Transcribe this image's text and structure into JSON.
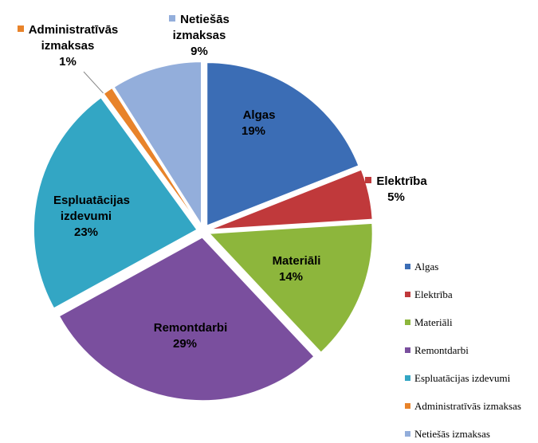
{
  "chart_data": {
    "type": "pie",
    "categories": [
      "Algas",
      "Elektrība",
      "Materiāli",
      "Remontdarbi",
      "Espluatācijas izdevumi",
      "Administratīvās izmaksas",
      "Netiešās izmaksas"
    ],
    "values": [
      19,
      5,
      14,
      29,
      23,
      1,
      9
    ],
    "value_labels": [
      "19%",
      "5%",
      "14%",
      "29%",
      "23%",
      "1%",
      "9%"
    ],
    "colors": [
      "#3b6db5",
      "#c0393b",
      "#8db63c",
      "#7a4f9e",
      "#33a6c4",
      "#e8832a",
      "#93aedb"
    ],
    "legend": "right"
  }
}
